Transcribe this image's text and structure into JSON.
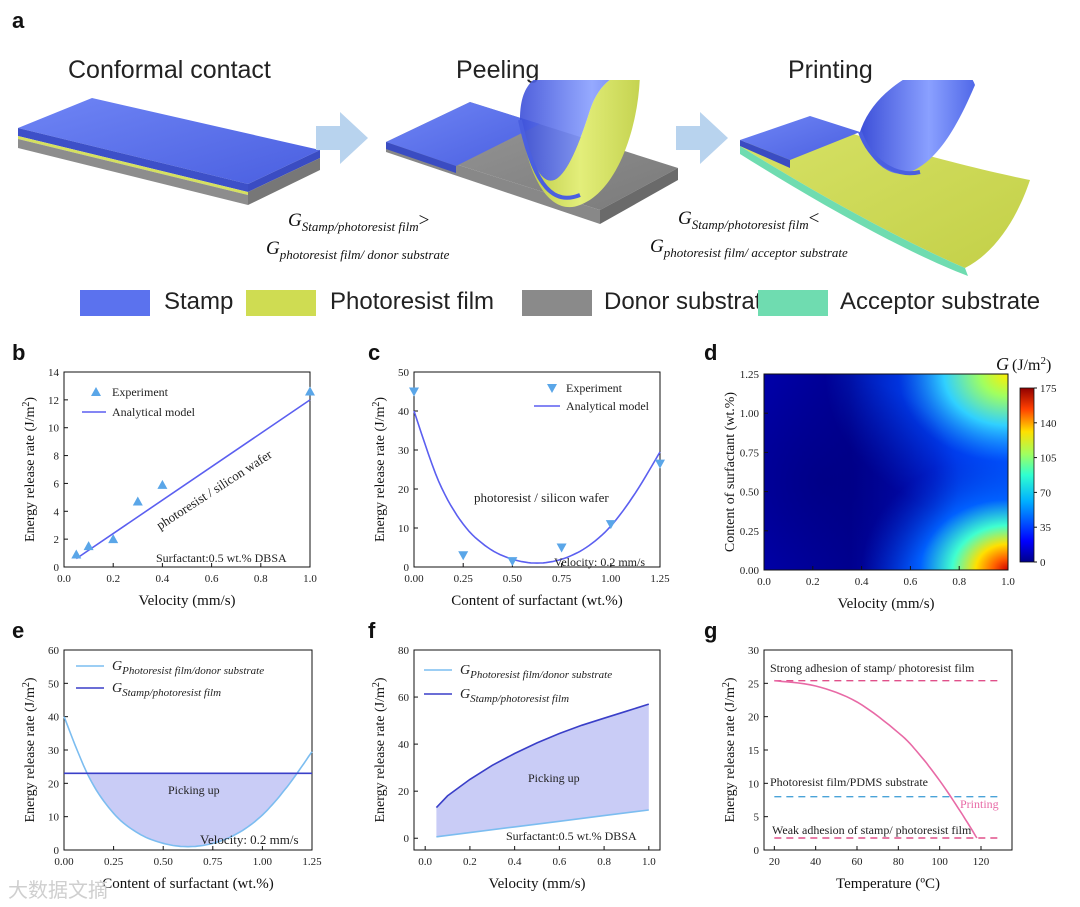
{
  "panel_a": {
    "label": "a",
    "steps": [
      "Conformal contact",
      "Peeling",
      "Printing"
    ],
    "eq1": {
      "line1_sub": "Stamp/photoresist film",
      "op1": ">",
      "line2_sub": "photoresist film/ donor substrate"
    },
    "eq2": {
      "line1_sub": "Stamp/photoresist film",
      "op2": "<",
      "line2_sub": "photoresist film/ acceptor substrate"
    },
    "G": "G",
    "legend": [
      {
        "label": "Stamp",
        "color": "#5b72ee"
      },
      {
        "label": "Photoresist film",
        "color": "#cfdc52"
      },
      {
        "label": "Donor substrate",
        "color": "#8a8a8a"
      },
      {
        "label": "Acceptor substrate",
        "color": "#6fdcb0"
      }
    ]
  },
  "chart_data": [
    {
      "id": "b",
      "type": "line+scatter",
      "xlabel": "Velocity (mm/s)",
      "ylabel": "Energy release rate (J/m²)",
      "xlim": [
        0,
        1.0
      ],
      "ylim": [
        0,
        14
      ],
      "xticks": [
        "0.0",
        "0.2",
        "0.4",
        "0.6",
        "0.8",
        "1.0"
      ],
      "yticks": [
        "0",
        "2",
        "4",
        "6",
        "8",
        "10",
        "12",
        "14"
      ],
      "series": [
        {
          "name": "Experiment",
          "kind": "scatter",
          "x": [
            0.05,
            0.1,
            0.2,
            0.3,
            0.4,
            1.0
          ],
          "y": [
            0.9,
            1.5,
            2.0,
            4.7,
            5.9,
            12.6
          ]
        },
        {
          "name": "Analytical model",
          "kind": "line",
          "x": [
            0.05,
            1.0
          ],
          "y": [
            0.6,
            12.0
          ]
        }
      ],
      "annotations": [
        "photoresist / silicon wafer",
        "Surfactant:0.5 wt.% DBSA"
      ]
    },
    {
      "id": "c",
      "type": "line+scatter",
      "xlabel": "Content of surfactant (wt.%)",
      "ylabel": "Energy release rate (J/m²)",
      "xlim": [
        0,
        1.25
      ],
      "ylim": [
        0,
        50
      ],
      "xticks": [
        "0.00",
        "0.25",
        "0.50",
        "0.75",
        "1.00",
        "1.25"
      ],
      "yticks": [
        "0",
        "10",
        "20",
        "30",
        "40",
        "50"
      ],
      "series": [
        {
          "name": "Experiment",
          "kind": "scatter",
          "x": [
            0,
            0.25,
            0.5,
            0.75,
            1.0,
            1.25
          ],
          "y": [
            45,
            3,
            1.5,
            5,
            11,
            26.5
          ]
        },
        {
          "name": "Analytical model",
          "kind": "line",
          "x": [
            0,
            0.125,
            0.25,
            0.375,
            0.5,
            0.625,
            0.75,
            0.875,
            1.0,
            1.125,
            1.25
          ],
          "y": [
            40,
            22,
            11,
            5,
            2,
            1,
            2,
            5,
            10.5,
            19,
            29.5
          ]
        }
      ],
      "annotations": [
        "photoresist / silicon wafer",
        "Velocity: 0.2 mm/s"
      ]
    },
    {
      "id": "d",
      "type": "heatmap",
      "xlabel": "Velocity (mm/s)",
      "ylabel": "Content of surfactant (wt.%)",
      "xlim": [
        0,
        1.0
      ],
      "ylim": [
        0,
        1.25
      ],
      "xticks": [
        "0.0",
        "0.2",
        "0.4",
        "0.6",
        "0.8",
        "1.0"
      ],
      "yticks": [
        "0.00",
        "0.25",
        "0.50",
        "0.75",
        "1.00",
        "1.25"
      ],
      "colorbar": {
        "title": "G",
        "unit": "(J/m²)",
        "ticks": [
          "0",
          "35",
          "70",
          "105",
          "140",
          "175"
        ],
        "range": [
          0,
          175
        ]
      }
    },
    {
      "id": "e",
      "type": "line",
      "xlabel": "Content of surfactant (wt.%)",
      "ylabel": "Energy release rate (J/m²)",
      "xlim": [
        0,
        1.25
      ],
      "ylim": [
        0,
        60
      ],
      "xticks": [
        "0.00",
        "0.25",
        "0.50",
        "0.75",
        "1.00",
        "1.25"
      ],
      "yticks": [
        "0",
        "10",
        "20",
        "30",
        "40",
        "50",
        "60"
      ],
      "series": [
        {
          "name": "G",
          "sub": "Photoresist film/donor substrate",
          "x": [
            0,
            0.125,
            0.25,
            0.375,
            0.5,
            0.625,
            0.75,
            0.875,
            1.0,
            1.125,
            1.25
          ],
          "y": [
            40,
            22,
            11,
            5,
            2,
            1,
            2,
            5,
            10.5,
            19,
            29.5
          ]
        },
        {
          "name": "G",
          "sub": "Stamp/photoresist film",
          "x": [
            0,
            1.25
          ],
          "y": [
            23,
            23
          ]
        }
      ],
      "annotations": [
        "Picking up",
        "Velocity: 0.2 mm/s"
      ]
    },
    {
      "id": "f",
      "type": "area",
      "xlabel": "Velocity (mm/s)",
      "ylabel": "Energy release rate (J/m²)",
      "xlim": [
        -0.05,
        1.05
      ],
      "ylim": [
        -5,
        80
      ],
      "xticks": [
        "0.0",
        "0.2",
        "0.4",
        "0.6",
        "0.8",
        "1.0"
      ],
      "yticks": [
        "0",
        "20",
        "40",
        "60",
        "80"
      ],
      "series": [
        {
          "name": "G",
          "sub": "Photoresist film/donor substrate",
          "x": [
            0.05,
            0.2,
            0.4,
            0.6,
            0.8,
            1.0
          ],
          "y": [
            0.6,
            2.4,
            4.8,
            7.2,
            9.6,
            12.0
          ]
        },
        {
          "name": "G",
          "sub": "Stamp/photoresist film",
          "x": [
            0.05,
            0.1,
            0.2,
            0.3,
            0.4,
            0.5,
            0.6,
            0.7,
            0.8,
            0.9,
            1.0
          ],
          "y": [
            13,
            18,
            25,
            31,
            36,
            40.5,
            44.5,
            48,
            51,
            54,
            57
          ]
        }
      ],
      "annotations": [
        "Picking up",
        "Surfactant:0.5 wt.% DBSA"
      ]
    },
    {
      "id": "g",
      "type": "line",
      "xlabel": "Temperature (ºC)",
      "ylabel": "Energy release rate (J/m²)",
      "xlim": [
        15,
        135
      ],
      "ylim": [
        0,
        30
      ],
      "xticks": [
        "20",
        "40",
        "60",
        "80",
        "100",
        "120"
      ],
      "yticks": [
        "0",
        "5",
        "10",
        "15",
        "20",
        "25",
        "30"
      ],
      "series": [
        {
          "name": "Strong adhesion of stamp/ photoresist film",
          "style": "dashed",
          "x": [
            20,
            130
          ],
          "y": [
            25.4,
            25.4
          ]
        },
        {
          "name": "Photoresist film/PDMS substrate",
          "style": "dashed",
          "x": [
            20,
            130
          ],
          "y": [
            8,
            8
          ]
        },
        {
          "name": "Weak adhesion of stamp/ photoresist film",
          "style": "dashed",
          "x": [
            20,
            130
          ],
          "y": [
            1.8,
            1.8
          ]
        },
        {
          "name": "Printing",
          "style": "solid",
          "x": [
            20,
            40,
            60,
            80,
            90,
            100,
            110,
            118
          ],
          "y": [
            25.4,
            24.6,
            22.2,
            17.6,
            14.4,
            10.4,
            5.8,
            1.8
          ]
        }
      ]
    }
  ],
  "panel_labels": [
    "b",
    "c",
    "d",
    "e",
    "f",
    "g"
  ],
  "watermark": "大数据文摘"
}
